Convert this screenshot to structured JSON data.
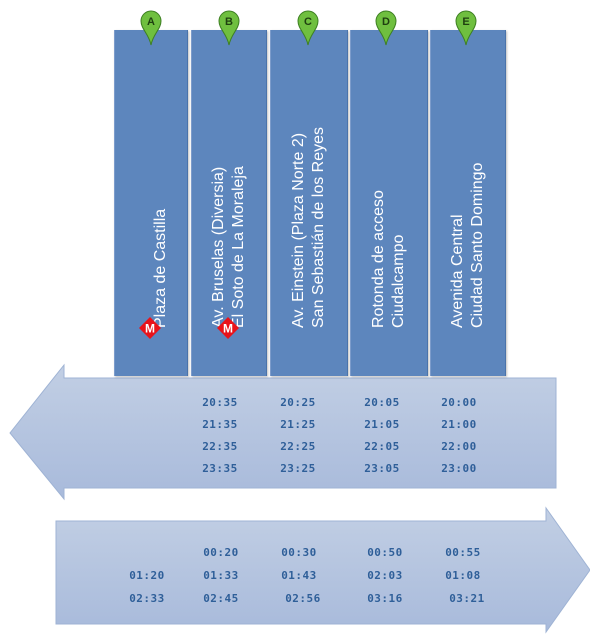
{
  "stops": [
    {
      "letter": "A",
      "line1": "Plaza de Castilla",
      "line2": "",
      "metro": "M"
    },
    {
      "letter": "B",
      "line1": "Av. Bruselas (Diversia)",
      "line2": "El Soto de La Moraleja",
      "metro": "M"
    },
    {
      "letter": "C",
      "line1": "Av. Einstein (Plaza Norte 2)",
      "line2": "San Sebastián de los Reyes",
      "metro": ""
    },
    {
      "letter": "D",
      "line1": "Rotonda de acceso",
      "line2": "Ciudalcampo",
      "metro": ""
    },
    {
      "letter": "E",
      "line1": "Avenida Central",
      "line2": "Ciudad Santo Domingo",
      "metro": ""
    }
  ],
  "inbound_times": {
    "B": [
      "20:35",
      "21:35",
      "22:35",
      "23:35"
    ],
    "C": [
      "20:25",
      "21:25",
      "22:25",
      "23:25"
    ],
    "D": [
      "20:05",
      "21:05",
      "22:05",
      "23:05"
    ],
    "E": [
      "20:00",
      "21:00",
      "22:00",
      "23:00"
    ]
  },
  "outbound_times": {
    "A": [
      "",
      "01:20",
      "02:33"
    ],
    "B": [
      "00:20",
      "01:33",
      "02:45"
    ],
    "C": [
      "00:30",
      "01:43",
      "02:56"
    ],
    "D": [
      "00:50",
      "02:03",
      "03:16"
    ],
    "E": [
      "00:55",
      "01:08",
      "03:21"
    ]
  },
  "colors": {
    "column": "#5d86bd",
    "arrow": "#b3c3dd",
    "time_text": "#2f5f99",
    "metro_red": "#e8131b",
    "marker_green": "#6fbf3f"
  },
  "icons": {
    "marker": "map-pin-icon",
    "metro": "metro-icon"
  }
}
